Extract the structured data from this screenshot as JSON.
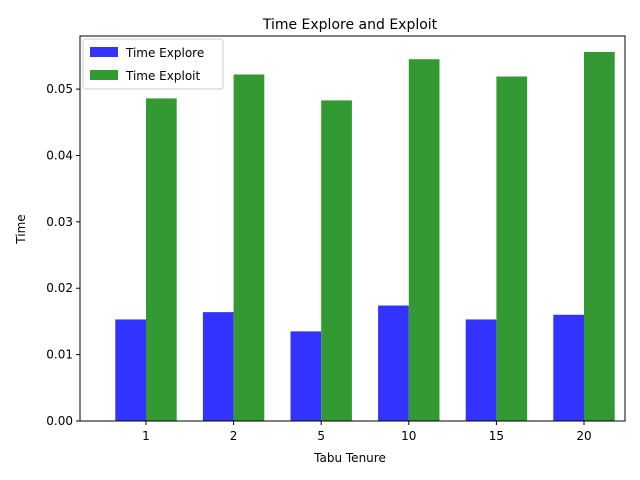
{
  "chart_data": {
    "type": "bar",
    "title": "Time Explore and Exploit",
    "xlabel": "Tabu Tenure",
    "ylabel": "Time",
    "categories": [
      "1",
      "2",
      "5",
      "10",
      "15",
      "20"
    ],
    "ylim": [
      0,
      0.058
    ],
    "yticks": [
      "0.00",
      "0.01",
      "0.02",
      "0.03",
      "0.04",
      "0.05"
    ],
    "ytick_values": [
      0,
      0.01,
      0.02,
      0.03,
      0.04,
      0.05
    ],
    "legend_position": "top-left",
    "series": [
      {
        "name": "Time Explore",
        "color": "#3333ff",
        "values": [
          0.0153,
          0.0164,
          0.0135,
          0.0174,
          0.0153,
          0.016
        ]
      },
      {
        "name": "Time Exploit",
        "color": "#339933",
        "values": [
          0.0486,
          0.0522,
          0.0483,
          0.0545,
          0.0519,
          0.0556
        ]
      }
    ]
  }
}
